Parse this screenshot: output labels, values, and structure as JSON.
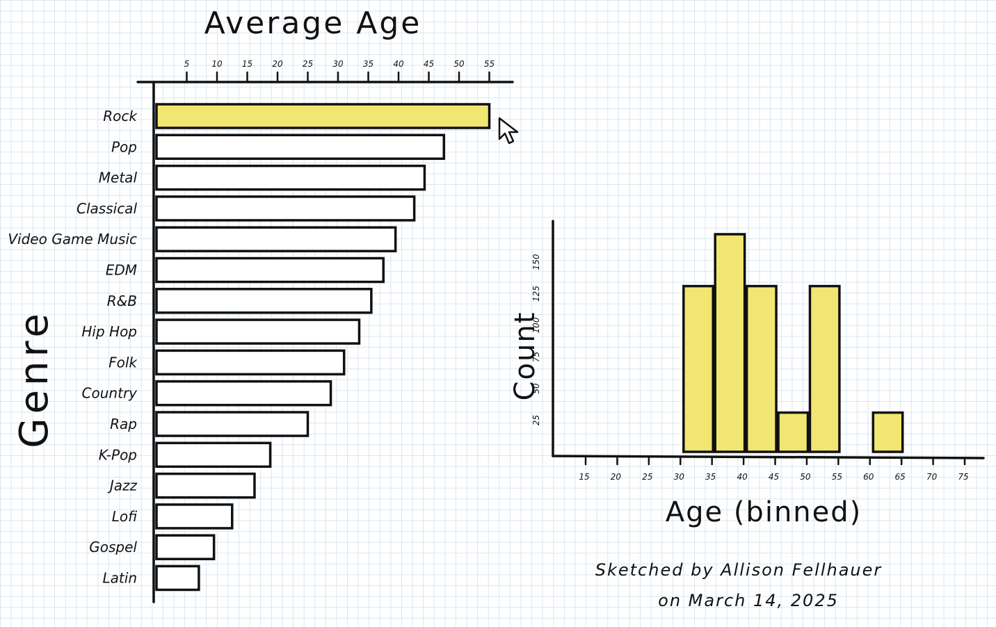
{
  "chart_data": [
    {
      "type": "bar",
      "orientation": "horizontal",
      "title": "Average Age",
      "xlabel": "Average Age",
      "ylabel": "Genre",
      "xlim": [
        0,
        56
      ],
      "x_ticks": [
        "5",
        "10",
        "15",
        "20",
        "25",
        "30",
        "35",
        "40",
        "45",
        "50",
        "55"
      ],
      "x_tick_values": [
        5,
        10,
        15,
        20,
        25,
        30,
        35,
        40,
        45,
        50,
        55
      ],
      "categories": [
        "Rock",
        "Pop",
        "Metal",
        "Classical",
        "Video Game Music",
        "EDM",
        "R&B",
        "Hip Hop",
        "Folk",
        "Country",
        "Rap",
        "K-Pop",
        "Jazz",
        "Lofi",
        "Gospel",
        "Latin"
      ],
      "values": [
        55,
        47.5,
        44.3,
        42.6,
        39.5,
        37.5,
        35.5,
        33.5,
        31,
        28.8,
        25,
        18.8,
        16.2,
        12.5,
        9.5,
        7
      ],
      "highlighted": "Rock",
      "highlight_color": "#f2e672",
      "grid": false,
      "legend": "none"
    },
    {
      "type": "bar",
      "title": "",
      "xlabel": "Age (binned)",
      "ylabel": "Count",
      "ylim": [
        0,
        170
      ],
      "x_ticks": [
        "15",
        "20",
        "25",
        "30",
        "35",
        "40",
        "45",
        "50",
        "55",
        "60",
        "65",
        "70",
        "75"
      ],
      "x_tick_values": [
        15,
        20,
        25,
        30,
        35,
        40,
        45,
        50,
        55,
        60,
        65,
        70,
        75
      ],
      "y_ticks": [
        "25",
        "50",
        "75",
        "100",
        "125",
        "150"
      ],
      "y_tick_values": [
        25,
        50,
        75,
        100,
        125,
        150
      ],
      "bins": [
        {
          "start": 31,
          "end": 35,
          "value": 131
        },
        {
          "start": 36,
          "end": 40,
          "value": 172
        },
        {
          "start": 41,
          "end": 45,
          "value": 131
        },
        {
          "start": 46,
          "end": 50,
          "value": 31
        },
        {
          "start": 51,
          "end": 55,
          "value": 131
        },
        {
          "start": 61,
          "end": 65,
          "value": 31
        }
      ],
      "bar_color": "#f2e672",
      "grid": false,
      "legend": "none"
    }
  ],
  "credit": {
    "line1": "Sketched by Allison Fellhauer",
    "line2": "on March 14, 2025"
  },
  "cursor_icon": "arrow-cursor-icon"
}
